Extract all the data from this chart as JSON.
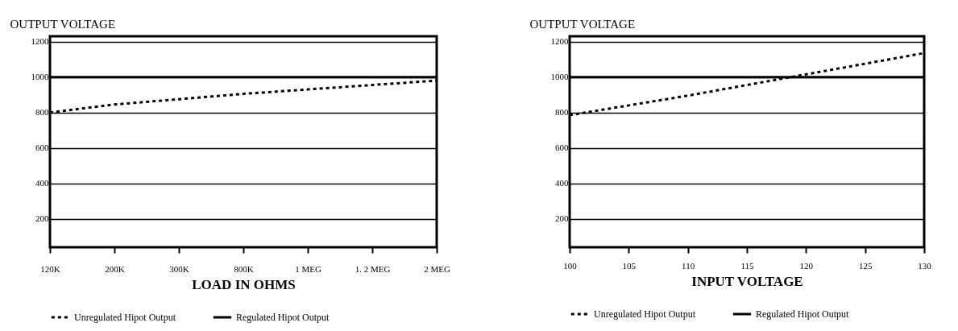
{
  "chart_data": [
    {
      "type": "line",
      "ylabel": "OUTPUT VOLTAGE",
      "xlabel": "LOAD IN OHMS",
      "categories": [
        "120K",
        "200K",
        "300K",
        "800K",
        "1 MEG",
        "1. 2 MEG",
        "2 MEG"
      ],
      "series": [
        {
          "name": "Unregulated Hipot Output",
          "color": "#000000",
          "line_style": "dotted",
          "values": [
            800,
            845,
            875,
            905,
            930,
            955,
            980
          ]
        },
        {
          "name": "Regulated Hipot Output",
          "color": "#000000",
          "line_style": "solid",
          "values": [
            1000,
            1000,
            1000,
            1000,
            1000,
            1000,
            1000
          ]
        }
      ],
      "ylim": [
        40,
        1230
      ],
      "yticks": [
        200,
        400,
        600,
        800,
        1000,
        1200
      ],
      "grid": "y",
      "legend": "bottom",
      "marker": "none"
    },
    {
      "type": "line",
      "ylabel": "OUTPUT VOLTAGE",
      "xlabel": "INPUT VOLTAGE",
      "x": [
        100,
        105,
        110,
        115,
        120,
        125,
        130
      ],
      "series": [
        {
          "name": "Unregulated Hipot Output",
          "color": "#000000",
          "line_style": "dotted",
          "values": [
            785,
            840,
            895,
            955,
            1015,
            1075,
            1135
          ]
        },
        {
          "name": "Regulated Hipot Output",
          "color": "#000000",
          "line_style": "solid",
          "values": [
            1000,
            1000,
            1000,
            1000,
            1000,
            1000,
            1000
          ]
        }
      ],
      "xlim": [
        100,
        130
      ],
      "xticks": [
        100,
        105,
        110,
        115,
        120,
        125,
        130
      ],
      "ylim": [
        40,
        1230
      ],
      "yticks": [
        200,
        400,
        600,
        800,
        1000,
        1200
      ],
      "grid": "y",
      "legend": "bottom",
      "marker": "none"
    }
  ]
}
